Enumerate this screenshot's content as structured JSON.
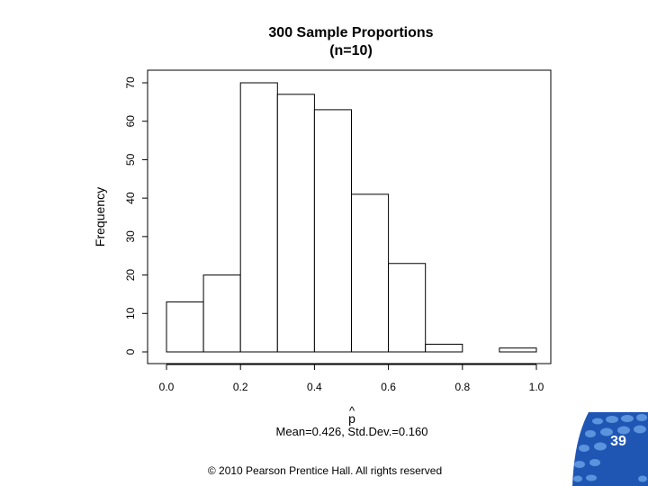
{
  "chart_data": {
    "type": "bar",
    "title": "300 Sample Proportions",
    "subtitle": "(n=10)",
    "xlabel_hat": "^",
    "xlabel": "p",
    "ylabel": "Frequency",
    "xlabel_stats": "Mean=0.426, Std.Dev.=0.160",
    "bins": [
      [
        0.0,
        0.1
      ],
      [
        0.1,
        0.2
      ],
      [
        0.2,
        0.3
      ],
      [
        0.3,
        0.4
      ],
      [
        0.4,
        0.5
      ],
      [
        0.5,
        0.6
      ],
      [
        0.6,
        0.7
      ],
      [
        0.7,
        0.8
      ],
      [
        0.8,
        0.9
      ],
      [
        0.9,
        1.0
      ]
    ],
    "values": [
      13,
      20,
      70,
      67,
      63,
      41,
      23,
      2,
      0,
      1
    ],
    "xlim": [
      0.0,
      1.0
    ],
    "ylim": [
      0,
      70
    ],
    "x_ticks": [
      "0.0",
      "0.2",
      "0.4",
      "0.6",
      "0.8",
      "1.0"
    ],
    "y_ticks": [
      "0",
      "10",
      "20",
      "30",
      "40",
      "50",
      "60",
      "70"
    ],
    "grid": false,
    "legend": "none"
  },
  "footer": {
    "copyright": "© 2010 Pearson Prentice Hall. All rights reserved",
    "page_number": "39"
  },
  "colors": {
    "bar_fill": "#ffffff",
    "bar_stroke": "#000000",
    "logo_blue": "#1f56b4",
    "logo_light": "#5b93dd"
  },
  "icons": {
    "logo": "pearson-dot-pattern-logo"
  }
}
